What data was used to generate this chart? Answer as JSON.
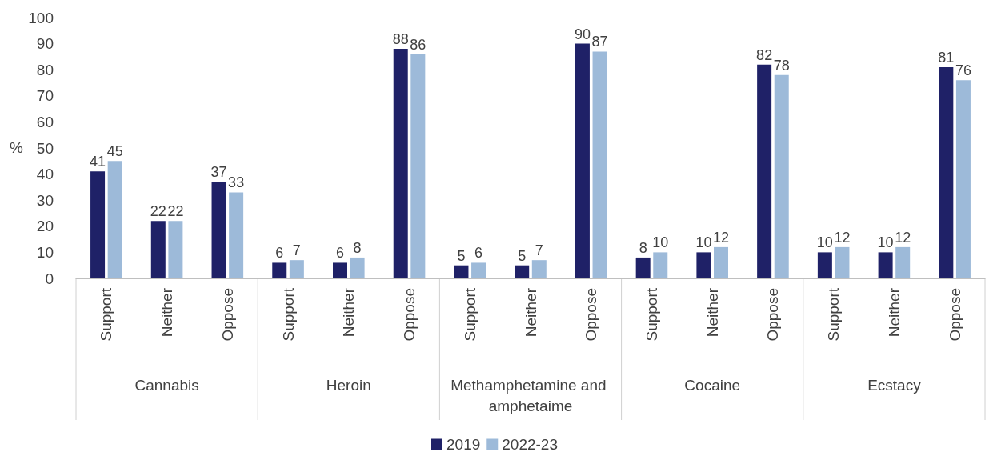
{
  "chart_data": {
    "type": "bar",
    "ylabel": "%",
    "categories": [
      "Support",
      "Neither",
      "Oppose",
      "Support",
      "Neither",
      "Oppose",
      "Support",
      "Neither",
      "Oppose",
      "Support",
      "Neither",
      "Oppose",
      "Support",
      "Neither",
      "Oppose"
    ],
    "annotations": [
      "Cannabis",
      "Heroin",
      "Methamphetamine and amphetaime",
      "Cocaine",
      "Ecstacy"
    ],
    "series": [
      {
        "name": "2019",
        "color": "#1f2167",
        "values": [
          41,
          22,
          37,
          6,
          6,
          88,
          5,
          5,
          90,
          8,
          10,
          82,
          10,
          10,
          81
        ]
      },
      {
        "name": "2022-23",
        "color": "#9dbad9",
        "values": [
          45,
          22,
          33,
          7,
          8,
          86,
          6,
          7,
          87,
          10,
          12,
          78,
          12,
          12,
          76
        ]
      }
    ],
    "ylim": [
      0,
      100
    ],
    "yticks": [
      0,
      10,
      20,
      30,
      40,
      50,
      60,
      70,
      80,
      90,
      100
    ],
    "grid": false,
    "legend": "bottom",
    "data_labels": true
  }
}
